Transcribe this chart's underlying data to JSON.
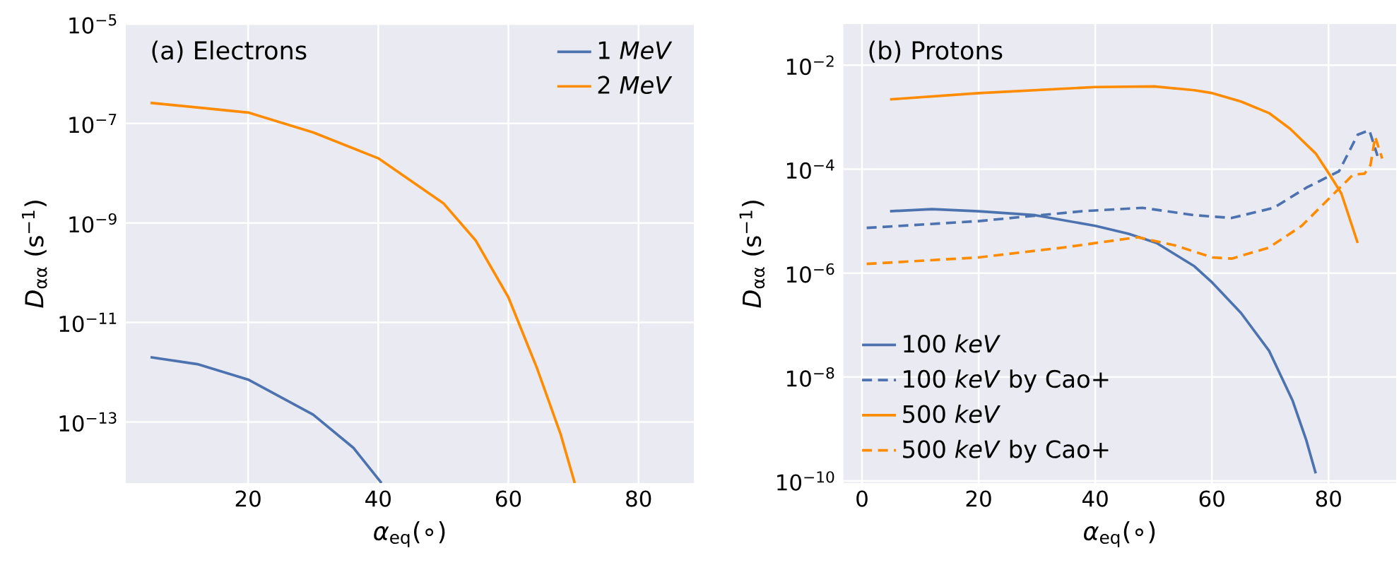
{
  "chart_data": [
    {
      "type": "line",
      "annotations": [
        "(a)  Electrons"
      ],
      "xlabel": "*α*$_{eq}$(∘)",
      "ylabel": "*D*$_{αα}$ (s$^{−1}$)",
      "log": "y",
      "grid": true,
      "legend": "top right",
      "marker": "none",
      "xlim": [
        1.2,
        88.5
      ],
      "xticks": [
        20,
        40,
        60,
        80
      ],
      "ylim": [
        5.9e-15,
        1e-05
      ],
      "yticks": [
        {
          "value": 1e-13,
          "label": "10$^{−13}$"
        },
        {
          "value": 1e-11,
          "label": "10$^{−11}$"
        },
        {
          "value": 1e-09,
          "label": "10$^{−9}$"
        },
        {
          "value": 1e-07,
          "label": "10$^{−7}$"
        },
        {
          "value": 1e-05,
          "label": "10$^{−5}$"
        }
      ],
      "series": [
        {
          "name": "1 *MeV*",
          "color": "#4c72b0",
          "line_style": "solid",
          "x": [
            5,
            12.2,
            20,
            30,
            36.2,
            40.5
          ],
          "values": [
            2e-12,
            1.45e-12,
            7.1e-13,
            1.4e-13,
            3e-14,
            5.9e-15
          ]
        },
        {
          "name": "2 *MeV*",
          "color": "#ff8c00",
          "line_style": "solid",
          "x": [
            5,
            20,
            30,
            40,
            50,
            55,
            60,
            64.4,
            68,
            70.2
          ],
          "values": [
            2.6e-07,
            1.66e-07,
            6.6e-08,
            2e-08,
            2.5e-09,
            4.4e-10,
            3.2e-11,
            1.2e-12,
            5.8e-14,
            5.9e-15
          ]
        }
      ]
    },
    {
      "type": "line",
      "annotations": [
        "(b)  Protons"
      ],
      "xlabel": "*α*$_{eq}$(∘)",
      "ylabel": "*D*$_{αα}$ (s$^{−1}$)",
      "log": "y",
      "grid": true,
      "legend": "bottom left",
      "marker": "none",
      "xlim": [
        -3.2,
        91.6
      ],
      "xticks": [
        0,
        20,
        40,
        60,
        80
      ],
      "ylim": [
        9.1e-11,
        0.062
      ],
      "yticks": [
        {
          "value": 1e-10,
          "label": "10$^{−10}$"
        },
        {
          "value": 1e-08,
          "label": "10$^{−8}$"
        },
        {
          "value": 1e-06,
          "label": "10$^{−6}$"
        },
        {
          "value": 0.0001,
          "label": "10$^{−4}$"
        },
        {
          "value": 0.01,
          "label": "10$^{−2}$"
        }
      ],
      "series": [
        {
          "name": "100 *keV*",
          "color": "#4c72b0",
          "line_style": "solid",
          "x": [
            4.8,
            12,
            20,
            29.7,
            40,
            45.7,
            50.5,
            57,
            60.1,
            65,
            69.8,
            73.8,
            76.2,
            77.8
          ],
          "values": [
            1.55e-05,
            1.7e-05,
            1.55e-05,
            1.3e-05,
            8.1e-06,
            5.7e-06,
            3.8e-06,
            1.35e-06,
            6.5e-07,
            1.7e-07,
            3.2e-08,
            3.6e-09,
            6e-10,
            1.4e-10
          ]
        },
        {
          "name": "100 *keV* by Cao+",
          "color": "#4c72b0",
          "line_style": "dashed",
          "x": [
            0.8,
            20,
            37.7,
            48.1,
            57,
            63.4,
            70.6,
            76.2,
            81.8,
            85,
            87,
            88.4
          ],
          "values": [
            7.4e-06,
            1e-05,
            1.55e-05,
            1.8e-05,
            1.3e-05,
            1.15e-05,
            1.8e-05,
            4.4e-05,
            9.1e-05,
            0.00046,
            0.00056,
            0.00018
          ]
        },
        {
          "name": "500 *keV*",
          "color": "#ff8c00",
          "line_style": "solid",
          "x": [
            4.8,
            20,
            40,
            50.1,
            57,
            60.1,
            65,
            69.8,
            73.4,
            77.8,
            80.2,
            82.2,
            85
          ],
          "values": [
            0.0022,
            0.0029,
            0.0038,
            0.0039,
            0.0033,
            0.0029,
            0.002,
            0.0012,
            0.0006,
            0.0002,
            7.8e-05,
            3.4e-05,
            3.8e-06
          ]
        },
        {
          "name": "500 *keV* by Cao+",
          "color": "#ff8c00",
          "line_style": "dashed",
          "x": [
            0.8,
            20,
            34.5,
            47.3,
            53.7,
            60.1,
            63.4,
            69.8,
            75.4,
            80.2,
            84.2,
            86.2,
            87.2,
            88,
            89.2
          ],
          "values": [
            1.5e-06,
            2e-06,
            3.1e-06,
            4.9e-06,
            3.4e-06,
            2e-06,
            1.9e-06,
            3.1e-06,
            8.1e-06,
            2.8e-05,
            7.8e-05,
            8.2e-05,
            0.00012,
            0.00042,
            0.00016
          ]
        }
      ]
    }
  ]
}
